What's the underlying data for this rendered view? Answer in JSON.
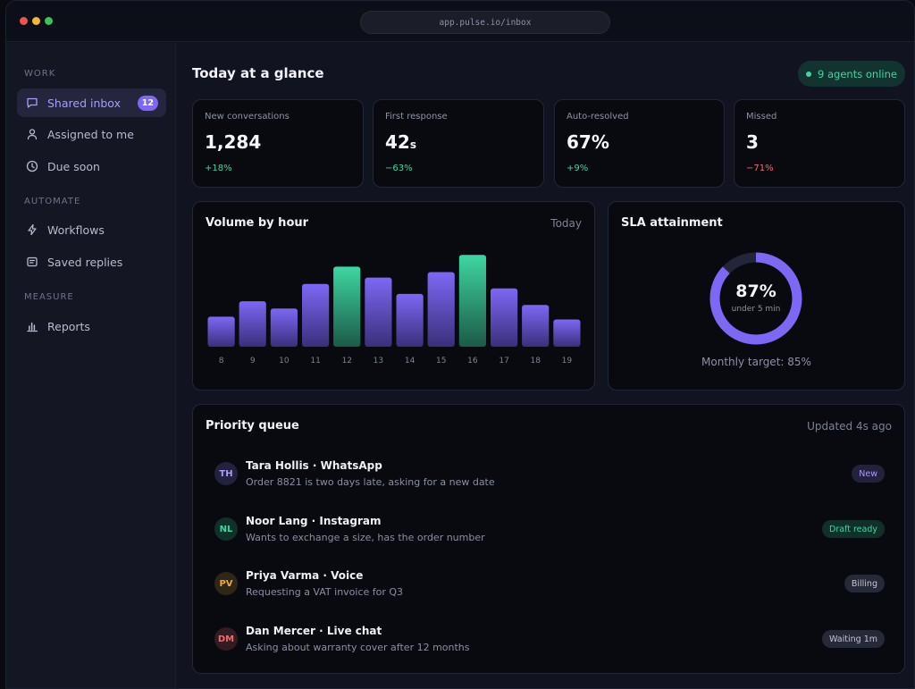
{
  "window": {
    "url": "app.pulse.io/inbox"
  },
  "sidebar": {
    "sections": [
      {
        "label": "WORK"
      },
      {
        "label": "AUTOMATE"
      },
      {
        "label": "MEASURE"
      }
    ],
    "items": [
      {
        "label": "Shared inbox",
        "icon": "chat-icon",
        "badge": "12",
        "active": true
      },
      {
        "label": "Assigned to me",
        "icon": "user-icon"
      },
      {
        "label": "Due soon",
        "icon": "clock-icon"
      },
      {
        "label": "Workflows",
        "icon": "lightning-icon"
      },
      {
        "label": "Saved replies",
        "icon": "document-icon"
      },
      {
        "label": "Reports",
        "icon": "bar-chart-icon"
      }
    ]
  },
  "header": {
    "title": "Today at a glance",
    "online": "9 agents online"
  },
  "stats": [
    {
      "label": "New conversations",
      "value": "1,284",
      "unit": "",
      "delta": "+18%",
      "trend": "up"
    },
    {
      "label": "First response",
      "value": "42",
      "unit": "s",
      "delta": "−63%",
      "trend": "up"
    },
    {
      "label": "Auto-resolved",
      "value": "67%",
      "unit": "",
      "delta": "+9%",
      "trend": "up"
    },
    {
      "label": "Missed",
      "value": "3",
      "unit": "",
      "delta": "−71%",
      "trend": "down"
    }
  ],
  "volume": {
    "title": "Volume by hour",
    "period": "Today"
  },
  "chart_data": {
    "type": "bar",
    "categories": [
      "8",
      "9",
      "10",
      "11",
      "12",
      "13",
      "14",
      "15",
      "16",
      "17",
      "18",
      "19"
    ],
    "values": [
      33,
      50,
      42,
      69,
      88,
      76,
      58,
      82,
      101,
      64,
      46,
      30
    ],
    "highlighted": [
      "12",
      "16"
    ],
    "colors": {
      "normal": "#7c68f5",
      "highlight": "#3ed6a1"
    },
    "title": "Volume by hour",
    "xlabel": "",
    "ylabel": "",
    "ylim": [
      0,
      110
    ],
    "grid": false
  },
  "sla": {
    "title": "SLA attainment",
    "value": "87%",
    "fraction": 0.87,
    "sub": "under 5 min",
    "target": "Monthly target: 85%"
  },
  "queue": {
    "title": "Priority queue",
    "updated": "Updated 4s ago",
    "rows": [
      {
        "initials": "TH",
        "name": "Tara Hollis · WhatsApp",
        "message": "Order 8821 is two days late, asking for a new date",
        "tag": "New",
        "tone": "purple"
      },
      {
        "initials": "NL",
        "name": "Noor Lang · Instagram",
        "message": "Wants to exchange a size, has the order number",
        "tag": "Draft ready",
        "tone": "green"
      },
      {
        "initials": "PV",
        "name": "Priya Varma · Voice",
        "message": "Requesting a VAT invoice for Q3",
        "tag": "Billing",
        "tone": "gray"
      },
      {
        "initials": "DM",
        "name": "Dan Mercer · Live chat",
        "message": "Asking about warranty cover after 12 months",
        "tag": "Waiting 1m",
        "tone": "gray"
      }
    ]
  }
}
